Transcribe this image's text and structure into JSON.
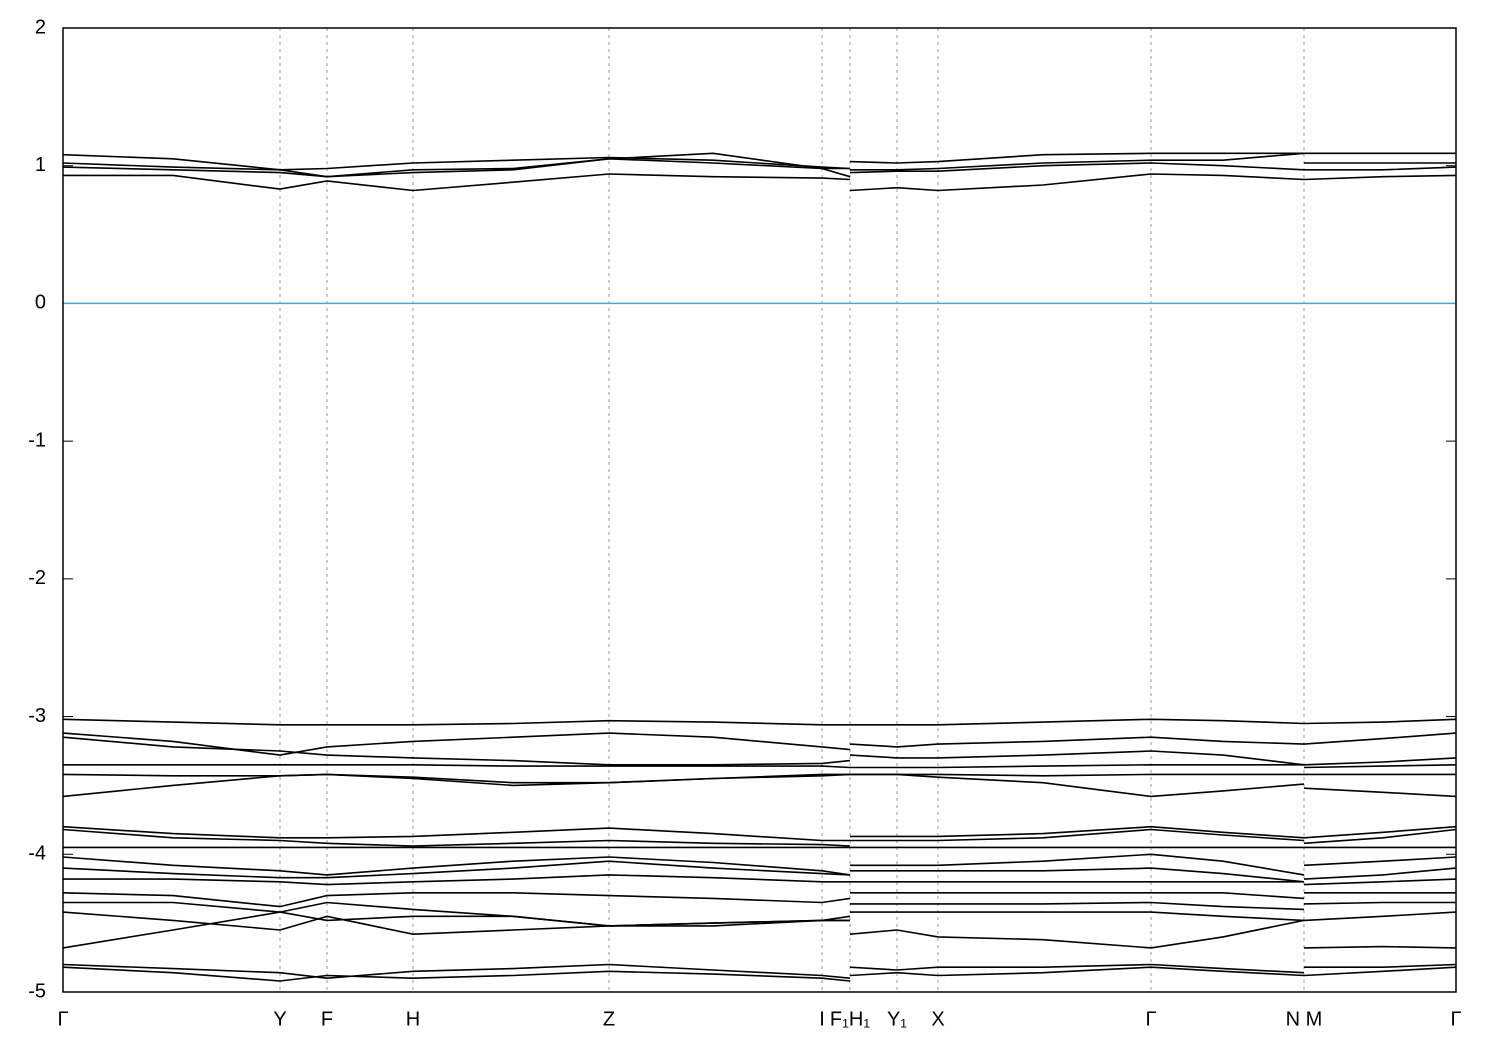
{
  "chart_data": {
    "type": "line",
    "xlim": [
      0,
      13.93
    ],
    "ylim": [
      -5,
      2
    ],
    "yticks": [
      -5,
      -4,
      -3,
      -2,
      -1,
      0,
      1,
      2
    ],
    "xticks": [
      {
        "value": 0,
        "label": "Γ"
      },
      {
        "value": 2.17,
        "label": "Y"
      },
      {
        "value": 2.64,
        "label": "F"
      },
      {
        "value": 3.5,
        "label": "H"
      },
      {
        "value": 5.46,
        "label": "Z"
      },
      {
        "value": 7.59,
        "label": "I"
      },
      {
        "value": 7.87,
        "label": "F₁H₁"
      },
      {
        "value": 8.34,
        "label": "Y₁"
      },
      {
        "value": 8.75,
        "label": "X"
      },
      {
        "value": 10.88,
        "label": "Γ"
      },
      {
        "value": 12.41,
        "label": "N M"
      },
      {
        "value": 13.93,
        "label": "Γ"
      }
    ],
    "grid": true,
    "zero_line": {
      "value": 0,
      "color": "#4aa8c8"
    },
    "x": [
      0,
      1.1,
      2.17,
      2.64,
      3.5,
      4.5,
      5.46,
      6.5,
      7.59,
      7.87,
      7.87,
      7.87,
      8.34,
      8.75,
      9.8,
      10.88,
      11.6,
      12.41,
      12.41,
      12.41,
      13.2,
      13.93
    ],
    "series": [
      {
        "color": "#000000",
        "values": [
          1.08,
          1.05,
          0.97,
          0.92,
          0.95,
          0.97,
          1.05,
          1.09,
          0.98,
          0.98,
          null,
          1.03,
          1.02,
          1.03,
          1.08,
          1.09,
          1.09,
          1.09,
          null,
          1.09,
          1.09,
          1.09
        ]
      },
      {
        "color": "#000000",
        "values": [
          1.02,
          0.99,
          0.97,
          0.98,
          1.02,
          1.04,
          1.06,
          1.04,
          0.99,
          0.98,
          null,
          0.97,
          0.97,
          0.98,
          1.02,
          1.04,
          1.04,
          1.09,
          null,
          1.02,
          1.02,
          1.02
        ]
      },
      {
        "color": "#000000",
        "values": [
          0.99,
          0.97,
          0.95,
          0.92,
          0.97,
          0.98,
          1.05,
          1.02,
          0.98,
          0.92,
          null,
          0.95,
          0.96,
          0.96,
          1.0,
          1.02,
          1.0,
          0.97,
          null,
          0.97,
          0.97,
          0.99
        ]
      },
      {
        "color": "#000000",
        "values": [
          0.93,
          0.93,
          0.83,
          0.89,
          0.82,
          0.88,
          0.94,
          0.92,
          0.91,
          0.9,
          null,
          0.82,
          0.84,
          0.82,
          0.86,
          0.94,
          0.93,
          0.9,
          null,
          0.9,
          0.92,
          0.93
        ]
      },
      {
        "color": "#000000",
        "values": [
          -3.02,
          -3.04,
          -3.06,
          -3.06,
          -3.06,
          -3.05,
          -3.03,
          -3.04,
          -3.06,
          -3.06,
          null,
          -3.06,
          -3.06,
          -3.06,
          -3.04,
          -3.02,
          -3.03,
          -3.05,
          null,
          -3.05,
          -3.04,
          -3.02
        ]
      },
      {
        "color": "#000000",
        "values": [
          -3.12,
          -3.18,
          -3.28,
          -3.22,
          -3.18,
          -3.15,
          -3.12,
          -3.15,
          -3.22,
          -3.24,
          null,
          -3.2,
          -3.22,
          -3.2,
          -3.18,
          -3.15,
          -3.18,
          -3.2,
          null,
          -3.2,
          -3.16,
          -3.12
        ]
      },
      {
        "color": "#000000",
        "values": [
          -3.15,
          -3.22,
          -3.25,
          -3.28,
          -3.3,
          -3.32,
          -3.35,
          -3.35,
          -3.34,
          -3.32,
          null,
          -3.28,
          -3.3,
          -3.3,
          -3.28,
          -3.25,
          -3.28,
          -3.35,
          null,
          -3.35,
          -3.33,
          -3.3
        ]
      },
      {
        "color": "#000000",
        "values": [
          -3.35,
          -3.35,
          -3.35,
          -3.35,
          -3.35,
          -3.36,
          -3.36,
          -3.36,
          -3.36,
          -3.37,
          null,
          -3.37,
          -3.37,
          -3.37,
          -3.36,
          -3.35,
          -3.35,
          -3.35,
          null,
          -3.37,
          -3.36,
          -3.35
        ]
      },
      {
        "color": "#000000",
        "values": [
          -3.42,
          -3.43,
          -3.43,
          -3.42,
          -3.44,
          -3.48,
          -3.48,
          -3.45,
          -3.42,
          -3.42,
          null,
          -3.42,
          -3.42,
          -3.42,
          -3.43,
          -3.42,
          -3.42,
          -3.42,
          null,
          -3.42,
          -3.42,
          -3.42
        ]
      },
      {
        "color": "#000000",
        "values": [
          -3.58,
          -3.5,
          -3.43,
          -3.42,
          -3.45,
          -3.5,
          -3.48,
          -3.45,
          -3.43,
          -3.42,
          null,
          -3.42,
          -3.42,
          -3.44,
          -3.48,
          -3.58,
          -3.54,
          -3.49,
          null,
          -3.52,
          -3.55,
          -3.58
        ]
      },
      {
        "color": "#000000",
        "values": [
          -3.8,
          -3.85,
          -3.88,
          -3.88,
          -3.87,
          -3.84,
          -3.81,
          -3.85,
          -3.9,
          -3.9,
          null,
          -3.87,
          -3.87,
          -3.87,
          -3.85,
          -3.8,
          -3.84,
          -3.88,
          null,
          -3.88,
          -3.84,
          -3.8
        ]
      },
      {
        "color": "#000000",
        "values": [
          -3.82,
          -3.88,
          -3.9,
          -3.92,
          -3.94,
          -3.92,
          -3.9,
          -3.92,
          -3.93,
          -3.94,
          null,
          -3.9,
          -3.9,
          -3.9,
          -3.88,
          -3.82,
          -3.86,
          -3.9,
          null,
          -3.92,
          -3.88,
          -3.82
        ]
      },
      {
        "color": "#000000",
        "values": [
          -3.95,
          -3.95,
          -3.95,
          -3.95,
          -3.95,
          -3.95,
          -3.95,
          -3.95,
          -3.95,
          -3.95,
          null,
          -3.95,
          -3.95,
          -3.95,
          -3.95,
          -3.95,
          -3.95,
          -3.95,
          null,
          -3.95,
          -3.95,
          -3.95
        ]
      },
      {
        "color": "#000000",
        "values": [
          -4.02,
          -4.08,
          -4.12,
          -4.15,
          -4.1,
          -4.05,
          -4.02,
          -4.06,
          -4.12,
          -4.15,
          null,
          -4.08,
          -4.08,
          -4.08,
          -4.05,
          -4.0,
          -4.05,
          -4.15,
          null,
          -4.08,
          -4.05,
          -4.02
        ]
      },
      {
        "color": "#000000",
        "values": [
          -4.1,
          -4.14,
          -4.17,
          -4.17,
          -4.14,
          -4.1,
          -4.05,
          -4.1,
          -4.14,
          -4.15,
          null,
          -4.12,
          -4.12,
          -4.12,
          -4.12,
          -4.1,
          -4.14,
          -4.2,
          null,
          -4.18,
          -4.15,
          -4.1
        ]
      },
      {
        "color": "#000000",
        "values": [
          -4.18,
          -4.18,
          -4.2,
          -4.22,
          -4.2,
          -4.18,
          -4.15,
          -4.17,
          -4.2,
          -4.2,
          null,
          -4.2,
          -4.2,
          -4.2,
          -4.2,
          -4.2,
          -4.2,
          -4.2,
          null,
          -4.22,
          -4.2,
          -4.18
        ]
      },
      {
        "color": "#000000",
        "values": [
          -4.28,
          -4.3,
          -4.38,
          -4.3,
          -4.28,
          -4.28,
          -4.3,
          -4.32,
          -4.35,
          -4.32,
          null,
          -4.28,
          -4.28,
          -4.28,
          -4.28,
          -4.28,
          -4.28,
          -4.32,
          null,
          -4.28,
          -4.28,
          -4.28
        ]
      },
      {
        "color": "#000000",
        "values": [
          -4.35,
          -4.35,
          -4.42,
          -4.35,
          -4.4,
          -4.45,
          -4.52,
          -4.5,
          -4.48,
          -4.48,
          null,
          -4.36,
          -4.36,
          -4.36,
          -4.36,
          -4.35,
          -4.38,
          -4.4,
          null,
          -4.36,
          -4.35,
          -4.35
        ]
      },
      {
        "color": "#000000",
        "values": [
          -4.42,
          -4.48,
          -4.55,
          -4.45,
          -4.58,
          -4.55,
          -4.52,
          -4.5,
          -4.48,
          -4.45,
          null,
          -4.42,
          -4.42,
          -4.42,
          -4.42,
          -4.42,
          -4.45,
          -4.48,
          null,
          -4.48,
          -4.45,
          -4.42
        ]
      },
      {
        "color": "#000000",
        "values": [
          -4.68,
          -4.55,
          -4.42,
          -4.48,
          -4.45,
          -4.45,
          -4.52,
          -4.52,
          -4.48,
          -4.48,
          null,
          -4.58,
          -4.55,
          -4.6,
          -4.62,
          -4.68,
          -4.6,
          -4.48,
          null,
          -4.68,
          -4.67,
          -4.68
        ]
      },
      {
        "color": "#000000",
        "values": [
          -4.8,
          -4.83,
          -4.86,
          -4.9,
          -4.85,
          -4.83,
          -4.8,
          -4.84,
          -4.88,
          -4.9,
          null,
          -4.82,
          -4.84,
          -4.82,
          -4.82,
          -4.8,
          -4.83,
          -4.86,
          null,
          -4.82,
          -4.82,
          -4.8
        ]
      },
      {
        "color": "#000000",
        "values": [
          -4.82,
          -4.86,
          -4.92,
          -4.88,
          -4.9,
          -4.88,
          -4.85,
          -4.87,
          -4.9,
          -4.92,
          null,
          -4.88,
          -4.86,
          -4.88,
          -4.86,
          -4.82,
          -4.85,
          -4.88,
          null,
          -4.88,
          -4.85,
          -4.82
        ]
      }
    ]
  }
}
